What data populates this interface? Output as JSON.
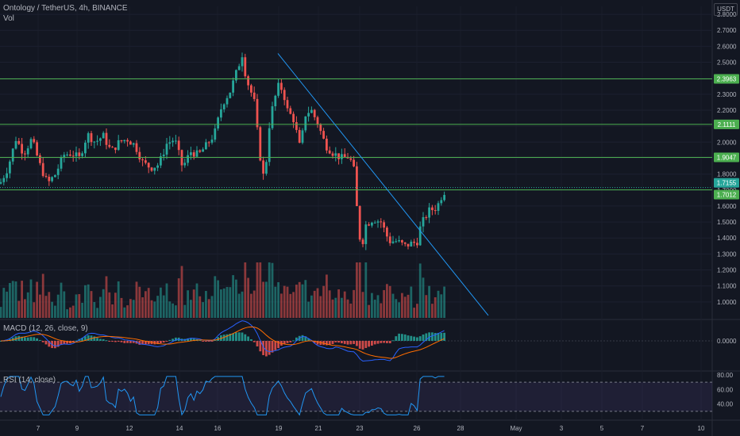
{
  "header": {
    "title": "Ontology / TetherUS, 4h, BINANCE",
    "vol": "Vol",
    "currency": "USDT"
  },
  "macd": {
    "label": "MACD (12, 26, close, 9)",
    "axis_labels": [
      "0.0000"
    ]
  },
  "rsi": {
    "label": "RSI (14, close)",
    "axis_labels": [
      "80.00",
      "60.00",
      "40.00"
    ]
  },
  "x_axis": {
    "ticks": [
      "7",
      "9",
      "12",
      "14",
      "16",
      "19",
      "21",
      "23",
      "26",
      "28",
      "May",
      "3",
      "5",
      "7",
      "10"
    ]
  },
  "levels": [
    {
      "value": "2.3963",
      "color": "#4caf50"
    },
    {
      "value": "2.1111",
      "color": "#4caf50"
    },
    {
      "value": "1.9047",
      "color": "#4caf50"
    },
    {
      "value": "1.7155",
      "color": "#26a69a"
    },
    {
      "value": "1.7012",
      "color": "#4caf50"
    }
  ],
  "colors": {
    "up": "#26a69a",
    "down": "#ef5350",
    "trendline": "#2196f3",
    "level": "#4caf50",
    "macd_line": "#2962ff",
    "signal_line": "#ff6d00",
    "rsi_line": "#7e57c2"
  },
  "chart_data": {
    "type": "candlestick",
    "symbol": "Ontology / TetherUS",
    "timeframe": "4h",
    "exchange": "BINANCE",
    "ylim": [
      0.9,
      2.85
    ],
    "price_ticks": [
      2.8,
      2.7,
      2.6,
      2.5,
      2.4,
      2.3,
      2.2,
      2.1,
      2.0,
      1.9,
      1.8,
      1.7,
      1.6,
      1.5,
      1.4,
      1.3,
      1.2,
      1.1,
      1.0
    ],
    "horizontal_levels": [
      2.3963,
      2.1111,
      1.9047,
      1.7012
    ],
    "last_price": 1.7155,
    "close_path": [
      [
        0,
        1.74
      ],
      [
        10,
        1.84
      ],
      [
        20,
        2.02
      ],
      [
        30,
        1.93
      ],
      [
        40,
        2.02
      ],
      [
        50,
        1.86
      ],
      [
        60,
        1.74
      ],
      [
        70,
        1.8
      ],
      [
        80,
        1.92
      ],
      [
        90,
        1.93
      ],
      [
        100,
        1.9
      ],
      [
        110,
        2.05
      ],
      [
        120,
        2.0
      ],
      [
        130,
        2.04
      ],
      [
        140,
        1.94
      ],
      [
        150,
        2.0
      ],
      [
        160,
        2.02
      ],
      [
        170,
        1.98
      ],
      [
        180,
        1.87
      ],
      [
        190,
        1.84
      ],
      [
        200,
        1.86
      ],
      [
        210,
        1.99
      ],
      [
        220,
        2.02
      ],
      [
        230,
        1.84
      ],
      [
        240,
        1.94
      ],
      [
        250,
        1.92
      ],
      [
        260,
        1.98
      ],
      [
        270,
        2.05
      ],
      [
        280,
        2.24
      ],
      [
        290,
        2.32
      ],
      [
        300,
        2.47
      ],
      [
        305,
        2.55
      ],
      [
        310,
        2.4
      ],
      [
        320,
        2.26
      ],
      [
        327,
        1.93
      ],
      [
        333,
        1.75
      ],
      [
        340,
        2.15
      ],
      [
        350,
        2.35
      ],
      [
        356,
        2.33
      ],
      [
        362,
        2.2
      ],
      [
        370,
        2.14
      ],
      [
        378,
        1.96
      ],
      [
        385,
        2.18
      ],
      [
        392,
        2.2
      ],
      [
        400,
        2.12
      ],
      [
        410,
        1.98
      ],
      [
        420,
        1.93
      ],
      [
        430,
        1.9
      ],
      [
        440,
        1.91
      ],
      [
        446,
        1.82
      ],
      [
        450,
        1.55
      ],
      [
        455,
        1.32
      ],
      [
        460,
        1.48
      ],
      [
        470,
        1.52
      ],
      [
        480,
        1.5
      ],
      [
        490,
        1.38
      ],
      [
        500,
        1.38
      ],
      [
        510,
        1.35
      ],
      [
        520,
        1.37
      ],
      [
        525,
        1.37
      ],
      [
        530,
        1.48
      ],
      [
        540,
        1.57
      ],
      [
        550,
        1.59
      ],
      [
        556,
        1.66
      ],
      [
        562,
        1.71
      ]
    ],
    "trendline": [
      [
        350,
        2.555
      ],
      [
        615,
        0.915
      ]
    ]
  }
}
